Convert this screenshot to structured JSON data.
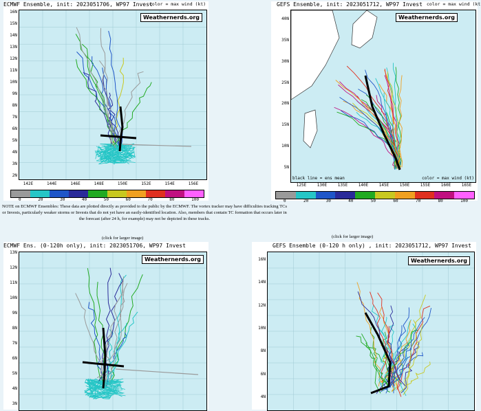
{
  "panels": {
    "ecmwf": {
      "title": "ECMWF Ensemble, init: 2023051706, WP97 Invest",
      "color_label": "color = max wind (kt)",
      "badge": "Weathernerds.org",
      "lat_labels": [
        "16N",
        "15N",
        "14N",
        "13N",
        "12N",
        "11N",
        "10N",
        "9N",
        "8N",
        "7N",
        "6N",
        "5N",
        "4N",
        "3N",
        "2N"
      ],
      "lon_labels": [
        "142E",
        "144E",
        "146E",
        "148E",
        "150E",
        "152E",
        "154E",
        "156E"
      ]
    },
    "gefs": {
      "title": "GEFS Ensemble, init: 2023051712, WP97 Invest",
      "color_label": "color = max wind (kt)",
      "badge": "Weathernerds.org",
      "inner_legend_a": "black line = ens mean",
      "inner_legend_b": "color = max wind (kt)",
      "lat_labels": [
        "40N",
        "35N",
        "30N",
        "25N",
        "20N",
        "15N",
        "10N",
        "5N"
      ],
      "lon_labels": [
        "125E",
        "130E",
        "135E",
        "140E",
        "145E",
        "150E",
        "155E",
        "160E",
        "165E"
      ]
    },
    "ecmwf_120": {
      "title": "ECMWF Ens. (0-120h only), init: 2023051706, WP97 Invest",
      "badge": "Weathernerds.org",
      "lat_labels": [
        "13N",
        "12N",
        "11N",
        "10N",
        "9N",
        "8N",
        "7N",
        "6N",
        "5N",
        "4N",
        "3N"
      ]
    },
    "gefs_120": {
      "title": "GEFS Ensemble (0-120 h only) , init: 2023051712, WP97 Invest",
      "badge": "Weathernerds.org",
      "lat_labels": [
        "16N",
        "14N",
        "12N",
        "10N",
        "8N",
        "6N",
        "4N"
      ]
    }
  },
  "wind_scale": {
    "ticks": [
      "0",
      "20",
      "30",
      "40",
      "50",
      "60",
      "70",
      "80",
      "100"
    ],
    "colors": [
      "#9a9a9a",
      "#26c6c6",
      "#1f56c8",
      "#2a2a99",
      "#22aa22",
      "#c8c820",
      "#f0a020",
      "#e03020",
      "#c01080",
      "#ff60ff"
    ]
  },
  "note": "NOTE on ECMWF Ensembles: These data are plotted directly as provided to the public by the ECMWF. The vortex tracker may have difficulties tracking TCs or Invests, particularly weaker storms or Invests that do not yet have an easily-identified location. Also, members that contain TC formation that occurs later in the forecast (after 24 h, for example) may not be depicted in these tracks.",
  "click_left": "(click for larger image)",
  "click_right": "(click for larger image)"
}
